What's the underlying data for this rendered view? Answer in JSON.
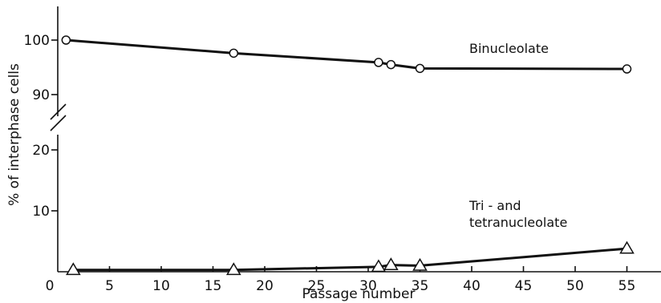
{
  "chart_data": {
    "type": "line",
    "title": "",
    "xlabel": "Passage number",
    "ylabel": "% of interphase cells",
    "x_ticks": [
      "0",
      "5",
      "10",
      "15",
      "20",
      "25",
      "30",
      "35",
      "40",
      "45",
      "50",
      "55"
    ],
    "xlim": [
      0,
      56
    ],
    "y_axis_broken": true,
    "y_lower_segment": {
      "range": [
        0,
        22
      ],
      "ticks": [
        "10",
        "20"
      ]
    },
    "y_upper_segment": {
      "range": [
        87,
        103
      ],
      "ticks": [
        "90",
        "100"
      ]
    },
    "series": [
      {
        "name": "Binucleolate",
        "marker": "circle",
        "segment": "upper",
        "points": [
          [
            0.8,
            100.0
          ],
          [
            17,
            97.6
          ],
          [
            31,
            95.9
          ],
          [
            32.2,
            95.5
          ],
          [
            35,
            94.8
          ],
          [
            55,
            94.7
          ]
        ]
      },
      {
        "name": "Tri-and tetranucleolate",
        "name_lines": [
          "Tri - and",
          "tetranucleolate"
        ],
        "marker": "triangle",
        "segment": "lower",
        "points": [
          [
            1.5,
            0.3
          ],
          [
            17,
            0.3
          ],
          [
            31,
            0.8
          ],
          [
            32.2,
            1.1
          ],
          [
            35,
            1.0
          ],
          [
            55,
            3.8
          ]
        ]
      }
    ]
  }
}
